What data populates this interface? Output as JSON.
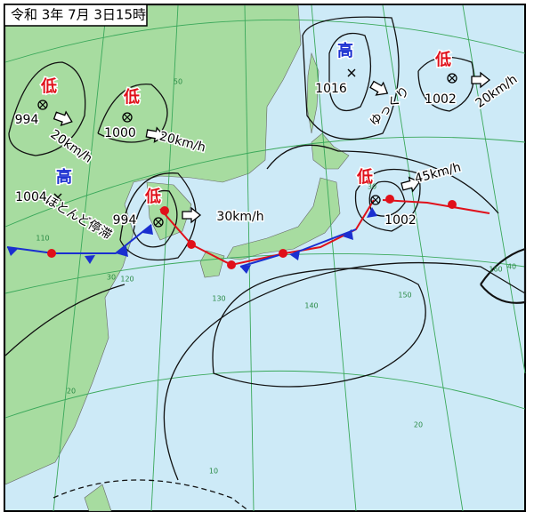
{
  "title": "令和 3年 7月 3日15時",
  "systems": [
    {
      "kind": "低",
      "pressure": "994",
      "movement": "20km/h"
    },
    {
      "kind": "低",
      "pressure": "1000",
      "movement": "20km/h"
    },
    {
      "kind": "高",
      "pressure": "1004",
      "movement": "ほとんど停滞"
    },
    {
      "kind": "低",
      "pressure": "994",
      "movement": "30km/h"
    },
    {
      "kind": "高",
      "pressure": "1016",
      "movement": "ゆっくり"
    },
    {
      "kind": "低",
      "pressure": "1002",
      "movement": "20km/h"
    },
    {
      "kind": "低",
      "pressure": "1002",
      "movement": "45km/h"
    }
  ],
  "grid_labels": [
    "50",
    "40",
    "30",
    "20",
    "20",
    "110",
    "120",
    "130",
    "140",
    "150",
    "160",
    "30",
    "10"
  ]
}
